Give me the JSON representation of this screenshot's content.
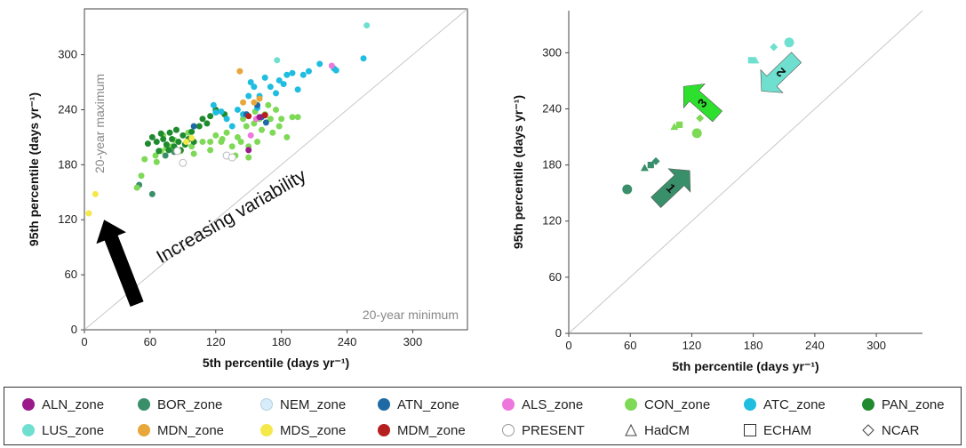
{
  "chart_data": [
    {
      "type": "scatter",
      "xlabel": "5th percentile  (days yr⁻¹)",
      "ylabel": "95th percentile (days yr⁻¹)",
      "xlim": [
        0,
        350
      ],
      "ylim": [
        0,
        350
      ],
      "x_ticks": [
        "0",
        "60",
        "120",
        "180",
        "240",
        "300"
      ],
      "y_ticks": [
        "0",
        "60",
        "120",
        "180",
        "240",
        "300"
      ],
      "diagonal_line": true,
      "annotations": {
        "increasing_variability": "Increasing variability",
        "max_label": "20-year maximum",
        "min_label": "20-year minimum"
      },
      "series": [
        {
          "name": "BOR_zone",
          "color": "#3a8f6b",
          "points": [
            [
              62,
              148
            ],
            [
              50,
              158
            ],
            [
              74,
              190
            ],
            [
              82,
              194
            ]
          ]
        },
        {
          "name": "CON_zone",
          "color": "#7ed957",
          "points": [
            [
              48,
              155
            ],
            [
              52,
              168
            ],
            [
              55,
              186
            ],
            [
              65,
              190
            ],
            [
              70,
              195
            ],
            [
              75,
              198
            ],
            [
              80,
              200
            ],
            [
              88,
              195
            ],
            [
              95,
              215
            ],
            [
              100,
              192
            ],
            [
              108,
              205
            ],
            [
              115,
              205
            ],
            [
              120,
              212
            ],
            [
              125,
              205
            ],
            [
              130,
              215
            ],
            [
              135,
              200
            ],
            [
              138,
              190
            ],
            [
              140,
              210
            ],
            [
              143,
              205
            ],
            [
              145,
              230
            ],
            [
              148,
              222
            ],
            [
              150,
              200
            ],
            [
              155,
              225
            ],
            [
              158,
              205
            ],
            [
              160,
              230
            ],
            [
              162,
              218
            ],
            [
              165,
              235
            ],
            [
              168,
              245
            ],
            [
              170,
              230
            ],
            [
              172,
              215
            ],
            [
              175,
              240
            ],
            [
              180,
              230
            ],
            [
              185,
              210
            ],
            [
              190,
              232
            ],
            [
              195,
              232
            ],
            [
              150,
              188
            ],
            [
              115,
              196
            ],
            [
              98,
              200
            ],
            [
              82,
              207
            ],
            [
              72,
              212
            ],
            [
              66,
              183
            ],
            [
              126,
              208
            ],
            [
              156,
              238
            ],
            [
              178,
              222
            ]
          ]
        },
        {
          "name": "PAN_zone",
          "color": "#1f8a2e",
          "points": [
            [
              58,
              203
            ],
            [
              62,
              210
            ],
            [
              66,
              205
            ],
            [
              68,
              195
            ],
            [
              70,
              214
            ],
            [
              72,
              208
            ],
            [
              75,
              202
            ],
            [
              77,
              196
            ],
            [
              78,
              215
            ],
            [
              80,
              208
            ],
            [
              82,
              200
            ],
            [
              84,
              218
            ],
            [
              86,
              205
            ],
            [
              88,
              196
            ],
            [
              90,
              212
            ],
            [
              92,
              202
            ],
            [
              95,
              208
            ],
            [
              98,
              216
            ],
            [
              100,
              205
            ],
            [
              105,
              222
            ],
            [
              108,
              230
            ],
            [
              112,
              225
            ],
            [
              115,
              233
            ],
            [
              120,
              240
            ],
            [
              128,
              235
            ]
          ]
        },
        {
          "name": "ATC_zone",
          "color": "#1fbde0",
          "points": [
            [
              118,
              245
            ],
            [
              120,
              237
            ],
            [
              125,
              238
            ],
            [
              130,
              230
            ],
            [
              135,
              222
            ],
            [
              140,
              240
            ],
            [
              145,
              235
            ],
            [
              150,
              255
            ],
            [
              152,
              270
            ],
            [
              155,
              265
            ],
            [
              158,
              242
            ],
            [
              160,
              255
            ],
            [
              165,
              275
            ],
            [
              170,
              265
            ],
            [
              175,
              258
            ],
            [
              178,
              272
            ],
            [
              182,
              268
            ],
            [
              185,
              278
            ],
            [
              190,
              280
            ],
            [
              195,
              262
            ],
            [
              200,
              278
            ],
            [
              205,
              282
            ],
            [
              215,
              290
            ],
            [
              228,
              285
            ],
            [
              230,
              283
            ],
            [
              255,
              296
            ]
          ]
        },
        {
          "name": "ATN_zone",
          "color": "#1f6aa5",
          "points": [
            [
              100,
              222
            ],
            [
              148,
              235
            ],
            [
              158,
              245
            ],
            [
              162,
              232
            ],
            [
              166,
              226
            ]
          ]
        },
        {
          "name": "ALS_zone",
          "color": "#ee77dd",
          "points": [
            [
              152,
              212
            ],
            [
              157,
              230
            ],
            [
              226,
              288
            ]
          ]
        },
        {
          "name": "ALN_zone",
          "color": "#9a1a8a",
          "points": [
            [
              150,
              196
            ],
            [
              160,
              232
            ]
          ]
        },
        {
          "name": "MDN_zone",
          "color": "#e8a73b",
          "points": [
            [
              145,
              248
            ],
            [
              155,
              248
            ],
            [
              160,
              252
            ],
            [
              142,
              282
            ]
          ]
        },
        {
          "name": "MDS_zone",
          "color": "#f5e84a",
          "points": [
            [
              4,
              127
            ],
            [
              10,
              148
            ],
            [
              93,
              205
            ],
            [
              98,
              209
            ]
          ]
        },
        {
          "name": "MDM_zone",
          "color": "#b51f1f",
          "points": [
            [
              150,
              233
            ],
            [
              165,
              234
            ]
          ]
        },
        {
          "name": "LUS_zone",
          "color": "#6fe0cf",
          "points": [
            [
              176,
              294
            ],
            [
              258,
              332
            ]
          ]
        },
        {
          "name": "PRESENT",
          "color": "#d8d8d8",
          "points": [
            [
              90,
              182
            ],
            [
              130,
              190
            ],
            [
              135,
              188
            ],
            [
              85,
              195
            ]
          ]
        }
      ]
    },
    {
      "type": "scatter",
      "xlabel": "5th percentile (days yr⁻¹)",
      "ylabel": "95th percentile (days yr⁻¹)",
      "xlim": [
        0,
        345
      ],
      "ylim": [
        0,
        345
      ],
      "x_ticks": [
        "0",
        "60",
        "120",
        "180",
        "240",
        "300"
      ],
      "y_ticks": [
        "0",
        "60",
        "120",
        "180",
        "240",
        "300"
      ],
      "diagonal_line": true,
      "arrows": [
        {
          "label": "1",
          "from": [
            85,
            140
          ],
          "to": [
            118,
            174
          ],
          "color": "#3a8f6b"
        },
        {
          "label": "2",
          "from": [
            222,
            295
          ],
          "to": [
            188,
            259
          ],
          "color": "#6fe0cf"
        },
        {
          "label": "3",
          "from": [
            145,
            232
          ],
          "to": [
            112,
            264
          ],
          "color": "#2ee02e"
        }
      ],
      "series": [
        {
          "name": "BOR_zone",
          "color": "#3a8f6b",
          "points": [
            {
              "x": 57,
              "y": 154,
              "m": "circle"
            },
            {
              "x": 74,
              "y": 177,
              "m": "triangle"
            },
            {
              "x": 80,
              "y": 180,
              "m": "square"
            },
            {
              "x": 85,
              "y": 184,
              "m": "diamond"
            }
          ]
        },
        {
          "name": "CON_zone",
          "color": "#7ed957",
          "points": [
            {
              "x": 125,
              "y": 214,
              "m": "circle"
            },
            {
              "x": 103,
              "y": 221,
              "m": "triangle"
            },
            {
              "x": 108,
              "y": 223,
              "m": "square"
            },
            {
              "x": 128,
              "y": 230,
              "m": "diamond"
            }
          ]
        },
        {
          "name": "LUS_zone",
          "color": "#6fe0cf",
          "points": [
            {
              "x": 215,
              "y": 311,
              "m": "circle"
            },
            {
              "x": 182,
              "y": 292,
              "m": "triangle"
            },
            {
              "x": 178,
              "y": 292,
              "m": "square"
            },
            {
              "x": 200,
              "y": 306,
              "m": "diamond"
            }
          ]
        }
      ]
    }
  ],
  "legend": [
    {
      "label": "ALN_zone",
      "color": "#9a1a8a",
      "shape": "circle"
    },
    {
      "label": "BOR_zone",
      "color": "#3a8f6b",
      "shape": "circle"
    },
    {
      "label": "NEM_zone",
      "color": "#d7eefa",
      "shape": "circle"
    },
    {
      "label": "ATN_zone",
      "color": "#1f6aa5",
      "shape": "circle"
    },
    {
      "label": "ALS_zone",
      "color": "#ee77dd",
      "shape": "circle"
    },
    {
      "label": "CON_zone",
      "color": "#7ed957",
      "shape": "circle"
    },
    {
      "label": "ATC_zone",
      "color": "#1fbde0",
      "shape": "circle"
    },
    {
      "label": "PAN_zone",
      "color": "#1f8a2e",
      "shape": "circle"
    },
    {
      "label": "LUS_zone",
      "color": "#6fe0cf",
      "shape": "circle"
    },
    {
      "label": "MDN_zone",
      "color": "#e8a73b",
      "shape": "circle"
    },
    {
      "label": "MDS_zone",
      "color": "#f5e84a",
      "shape": "circle"
    },
    {
      "label": "MDM_zone",
      "color": "#b51f1f",
      "shape": "circle"
    },
    {
      "label": "PRESENT",
      "color": "#ffffff",
      "shape": "circle-open"
    },
    {
      "label": "HadCM",
      "color": "#ffffff",
      "shape": "triangle-open"
    },
    {
      "label": "ECHAM",
      "color": "#ffffff",
      "shape": "square-open"
    },
    {
      "label": "NCAR",
      "color": "#ffffff",
      "shape": "diamond-open"
    }
  ]
}
